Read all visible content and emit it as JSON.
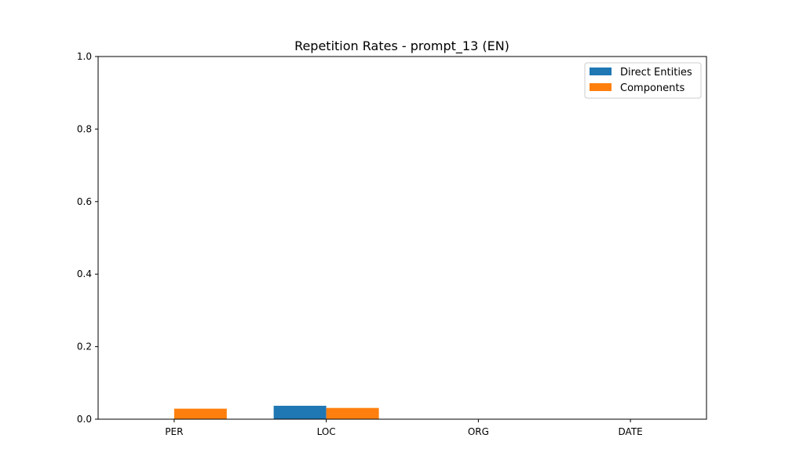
{
  "chart_data": {
    "type": "bar",
    "title": "Repetition Rates - prompt_13 (EN)",
    "xlabel": "",
    "ylabel": "",
    "categories": [
      "PER",
      "LOC",
      "ORG",
      "DATE"
    ],
    "series": [
      {
        "name": "Direct Entities",
        "color": "#1f77b4",
        "values": [
          0.0,
          0.037,
          0.0,
          0.0
        ]
      },
      {
        "name": "Components",
        "color": "#ff7f0e",
        "values": [
          0.029,
          0.031,
          0.0,
          0.0
        ]
      }
    ],
    "ylim": [
      0,
      1.0
    ],
    "yticks": [
      "0.0",
      "0.2",
      "0.4",
      "0.6",
      "0.8",
      "1.0"
    ],
    "grid": false,
    "legend": "top-right"
  }
}
